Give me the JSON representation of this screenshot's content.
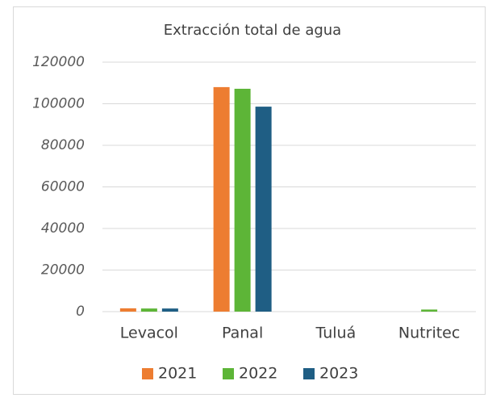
{
  "chart_data": {
    "type": "bar",
    "title": "Extracción total de agua",
    "categories": [
      "Levacol",
      "Panal",
      "Tuluá",
      "Nutritec"
    ],
    "series": [
      {
        "name": "2021",
        "color": "#ed7d31",
        "values": [
          1600,
          108000,
          0,
          0
        ]
      },
      {
        "name": "2022",
        "color": "#5db537",
        "values": [
          1500,
          107200,
          0,
          1000
        ]
      },
      {
        "name": "2023",
        "color": "#1f5e84",
        "values": [
          1500,
          98600,
          0,
          0
        ]
      }
    ],
    "ylim": [
      0,
      120000
    ],
    "yticks": [
      0,
      20000,
      40000,
      60000,
      80000,
      100000,
      120000
    ],
    "grid": true,
    "legend": "bottom"
  }
}
